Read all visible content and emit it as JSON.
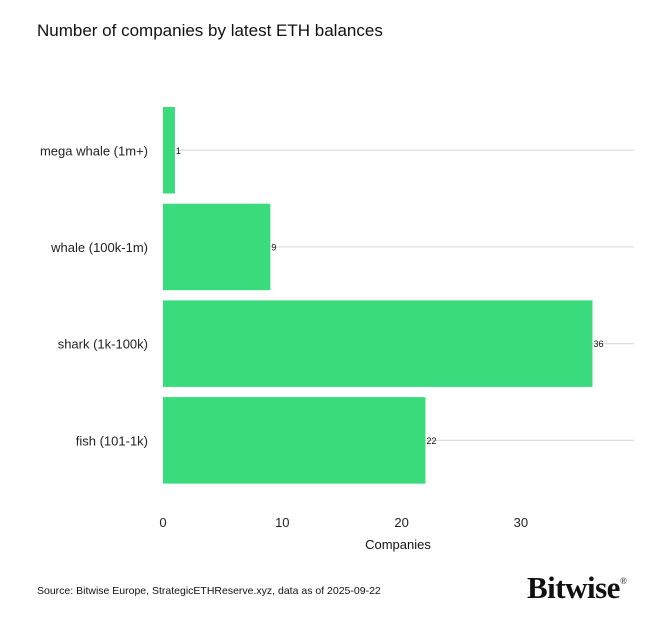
{
  "chart_data": {
    "type": "bar",
    "orientation": "horizontal",
    "title": "Number of companies by latest ETH balances",
    "categories": [
      "mega whale (1m+)",
      "whale (100k-1m)",
      "shark (1k-100k)",
      "fish (101-1k)"
    ],
    "values": [
      1,
      9,
      36,
      22
    ],
    "xlabel": "Companies",
    "ylabel": "",
    "xlim": [
      0,
      40
    ],
    "xticks": [
      0,
      10,
      20,
      30
    ],
    "grid": "horizontal lines at category centers",
    "bar_color": "#3ADB7C",
    "grid_color": "#DDDDDD",
    "data_labels": true
  },
  "footer": {
    "source": "Source: Bitwise Europe, StrategicETHReserve.xyz, data as of 2025-09-22",
    "logo": "Bitwise"
  }
}
